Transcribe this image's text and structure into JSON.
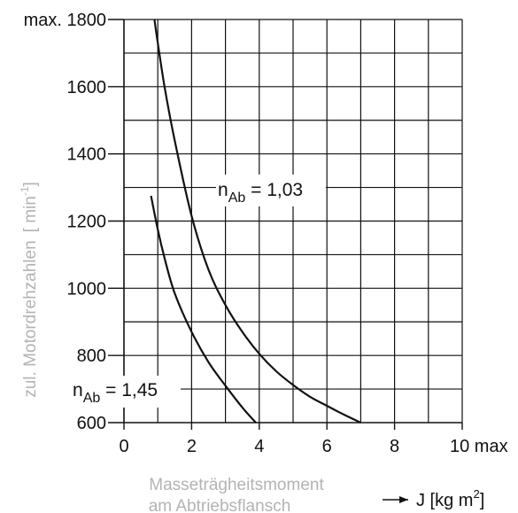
{
  "chart_data": {
    "type": "line",
    "title": "",
    "ylabel": "zul. Motordrehzahlen",
    "ylabel_unit_open": "[ min",
    "ylabel_unit_sup": "-1",
    "ylabel_unit_close": "]",
    "xlabel_line1": "Masseträgheitsmoment",
    "xlabel_line2": "am Abtriebsflansch",
    "xunit_arrow": "→",
    "xunit_base": "J [kg m",
    "xunit_sup": "2",
    "xunit_close": "]",
    "xlim": [
      0,
      10
    ],
    "ylim": [
      600,
      1800
    ],
    "x_ticks": [
      0,
      2,
      4,
      6,
      8,
      10
    ],
    "x_tick_labels": [
      "0",
      "2",
      "4",
      "6",
      "8",
      "10 max"
    ],
    "y_ticks": [
      600,
      800,
      1000,
      1200,
      1400,
      1600,
      1800
    ],
    "y_tick_labels": [
      "600",
      "800",
      "1000",
      "1200",
      "1400",
      "1600",
      "max. 1800"
    ],
    "grid": true,
    "grid_x_step": 1,
    "grid_y_step": 100,
    "series": [
      {
        "label_base": "n",
        "label_sub": "Ab",
        "label_value": " = 1,03",
        "points": [
          [
            0.9,
            1800
          ],
          [
            1.0,
            1730
          ],
          [
            1.2,
            1600
          ],
          [
            1.5,
            1440
          ],
          [
            2.0,
            1215
          ],
          [
            2.5,
            1055
          ],
          [
            3.0,
            950
          ],
          [
            3.5,
            870
          ],
          [
            4.0,
            805
          ],
          [
            4.5,
            753
          ],
          [
            5.0,
            712
          ],
          [
            5.5,
            677
          ],
          [
            6.0,
            650
          ],
          [
            6.5,
            624
          ],
          [
            7.0,
            600
          ]
        ]
      },
      {
        "label_base": "n",
        "label_sub": "Ab",
        "label_value": " = 1,45",
        "points": [
          [
            0.8,
            1275
          ],
          [
            1.0,
            1175
          ],
          [
            1.2,
            1090
          ],
          [
            1.5,
            985
          ],
          [
            2.0,
            870
          ],
          [
            2.5,
            780
          ],
          [
            3.0,
            710
          ],
          [
            3.5,
            645
          ],
          [
            3.9,
            600
          ]
        ]
      }
    ]
  }
}
